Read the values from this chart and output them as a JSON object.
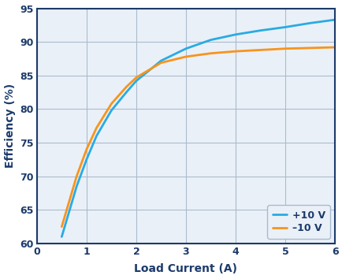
{
  "title": "",
  "xlabel": "Load Current (A)",
  "ylabel": "Efficiency (%)",
  "xlim": [
    0,
    6
  ],
  "ylim": [
    60,
    95
  ],
  "xticks": [
    0,
    1,
    2,
    3,
    4,
    5,
    6
  ],
  "yticks": [
    60,
    65,
    70,
    75,
    80,
    85,
    90,
    95
  ],
  "line1_label": "+10 V",
  "line2_label": "–10 V",
  "line1_color": "#29ABE2",
  "line2_color": "#F7941D",
  "plot_bg_color": "#EAF0F8",
  "fig_bg_color": "#FFFFFF",
  "grid_color": "#AABBCC",
  "border_color": "#1C3A6B",
  "tick_color": "#1C3A6B",
  "label_color": "#1C3A6B",
  "line1_x": [
    0.5,
    0.6,
    0.7,
    0.8,
    0.9,
    1.0,
    1.2,
    1.5,
    1.8,
    2.0,
    2.5,
    3.0,
    3.5,
    4.0,
    4.5,
    5.0,
    5.5,
    6.0
  ],
  "line1_y": [
    61.0,
    63.5,
    66.0,
    68.5,
    70.5,
    72.5,
    76.0,
    79.8,
    82.5,
    84.2,
    87.2,
    89.0,
    90.3,
    91.1,
    91.7,
    92.2,
    92.8,
    93.3
  ],
  "line2_x": [
    0.5,
    0.6,
    0.7,
    0.8,
    0.9,
    1.0,
    1.2,
    1.5,
    1.8,
    2.0,
    2.5,
    3.0,
    3.5,
    4.0,
    4.5,
    5.0,
    5.5,
    6.0
  ],
  "line2_y": [
    62.5,
    65.0,
    67.5,
    70.0,
    72.0,
    74.0,
    77.2,
    80.8,
    83.3,
    84.7,
    86.9,
    87.8,
    88.3,
    88.6,
    88.8,
    89.0,
    89.1,
    89.2
  ],
  "linewidth": 2.0,
  "xlabel_fontsize": 10,
  "ylabel_fontsize": 10,
  "tick_fontsize": 9,
  "legend_fontsize": 9
}
